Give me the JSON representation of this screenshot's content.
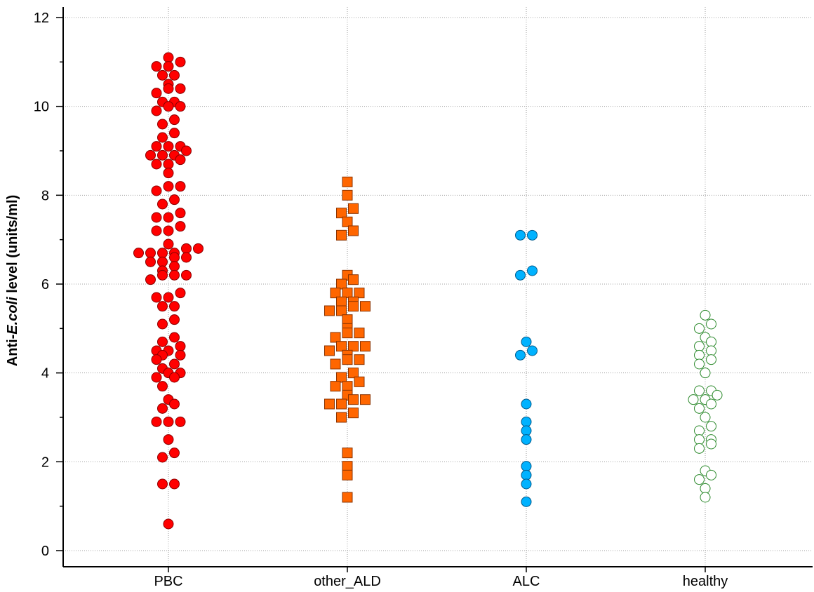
{
  "chart_data": {
    "type": "scatter",
    "title": "",
    "xlabel": "",
    "ylabel": {
      "prefix": "Anti-",
      "italic": "E.coli",
      "suffix": " level (units/ml)"
    },
    "ylim": [
      0,
      12
    ],
    "yticks": [
      0,
      2,
      4,
      6,
      8,
      10,
      12
    ],
    "grid": true,
    "categories": [
      "PBC",
      "other_ALD",
      "ALC",
      "healthy"
    ],
    "series": [
      {
        "name": "PBC",
        "marker": "circle",
        "fill": "#ff0000",
        "stroke": "#8b0000",
        "points": [
          {
            "dx": 0,
            "y": 11.1
          },
          {
            "dx": -2,
            "y": 10.9
          },
          {
            "dx": 0,
            "y": 10.9
          },
          {
            "dx": 2,
            "y": 11.0
          },
          {
            "dx": -1,
            "y": 10.7
          },
          {
            "dx": 1,
            "y": 10.7
          },
          {
            "dx": 0,
            "y": 10.5
          },
          {
            "dx": 0,
            "y": 10.4
          },
          {
            "dx": 2,
            "y": 10.4
          },
          {
            "dx": -2,
            "y": 10.3
          },
          {
            "dx": -1,
            "y": 10.1
          },
          {
            "dx": 1,
            "y": 10.1
          },
          {
            "dx": 0,
            "y": 10.0
          },
          {
            "dx": 2,
            "y": 10.0
          },
          {
            "dx": -2,
            "y": 9.9
          },
          {
            "dx": 1,
            "y": 9.7
          },
          {
            "dx": -1,
            "y": 9.6
          },
          {
            "dx": 1,
            "y": 9.4
          },
          {
            "dx": -1,
            "y": 9.3
          },
          {
            "dx": -2,
            "y": 9.1
          },
          {
            "dx": 0,
            "y": 9.1
          },
          {
            "dx": 2,
            "y": 9.1
          },
          {
            "dx": -3,
            "y": 8.9
          },
          {
            "dx": -1,
            "y": 8.9
          },
          {
            "dx": 1,
            "y": 8.9
          },
          {
            "dx": 3,
            "y": 9.0
          },
          {
            "dx": 2,
            "y": 8.8
          },
          {
            "dx": -2,
            "y": 8.7
          },
          {
            "dx": 0,
            "y": 8.7
          },
          {
            "dx": 0,
            "y": 8.5
          },
          {
            "dx": 0,
            "y": 8.2
          },
          {
            "dx": 2,
            "y": 8.2
          },
          {
            "dx": -2,
            "y": 8.1
          },
          {
            "dx": 1,
            "y": 7.9
          },
          {
            "dx": -1,
            "y": 7.8
          },
          {
            "dx": 2,
            "y": 7.6
          },
          {
            "dx": -2,
            "y": 7.5
          },
          {
            "dx": 0,
            "y": 7.5
          },
          {
            "dx": 2,
            "y": 7.3
          },
          {
            "dx": -2,
            "y": 7.2
          },
          {
            "dx": 0,
            "y": 7.2
          },
          {
            "dx": 0,
            "y": 6.9
          },
          {
            "dx": -5,
            "y": 6.7
          },
          {
            "dx": -3,
            "y": 6.7
          },
          {
            "dx": -1,
            "y": 6.7
          },
          {
            "dx": 1,
            "y": 6.7
          },
          {
            "dx": 3,
            "y": 6.8
          },
          {
            "dx": 5,
            "y": 6.8
          },
          {
            "dx": 1,
            "y": 6.6
          },
          {
            "dx": 3,
            "y": 6.6
          },
          {
            "dx": -3,
            "y": 6.5
          },
          {
            "dx": -1,
            "y": 6.5
          },
          {
            "dx": 1,
            "y": 6.4
          },
          {
            "dx": -1,
            "y": 6.3
          },
          {
            "dx": -1,
            "y": 6.2
          },
          {
            "dx": 1,
            "y": 6.2
          },
          {
            "dx": 3,
            "y": 6.2
          },
          {
            "dx": -3,
            "y": 6.1
          },
          {
            "dx": 2,
            "y": 5.8
          },
          {
            "dx": -2,
            "y": 5.7
          },
          {
            "dx": 0,
            "y": 5.7
          },
          {
            "dx": -1,
            "y": 5.5
          },
          {
            "dx": 1,
            "y": 5.5
          },
          {
            "dx": 1,
            "y": 5.2
          },
          {
            "dx": -1,
            "y": 5.1
          },
          {
            "dx": 1,
            "y": 4.8
          },
          {
            "dx": -1,
            "y": 4.7
          },
          {
            "dx": 2,
            "y": 4.6
          },
          {
            "dx": -2,
            "y": 4.5
          },
          {
            "dx": 0,
            "y": 4.5
          },
          {
            "dx": -1,
            "y": 4.4
          },
          {
            "dx": 2,
            "y": 4.4
          },
          {
            "dx": -2,
            "y": 4.3
          },
          {
            "dx": 1,
            "y": 4.2
          },
          {
            "dx": -1,
            "y": 4.1
          },
          {
            "dx": 0,
            "y": 4.0
          },
          {
            "dx": 2,
            "y": 4.0
          },
          {
            "dx": -2,
            "y": 3.9
          },
          {
            "dx": 1,
            "y": 3.9
          },
          {
            "dx": -1,
            "y": 3.7
          },
          {
            "dx": 0,
            "y": 3.4
          },
          {
            "dx": 1,
            "y": 3.3
          },
          {
            "dx": -1,
            "y": 3.2
          },
          {
            "dx": -2,
            "y": 2.9
          },
          {
            "dx": 0,
            "y": 2.9
          },
          {
            "dx": 2,
            "y": 2.9
          },
          {
            "dx": 0,
            "y": 2.5
          },
          {
            "dx": 1,
            "y": 2.2
          },
          {
            "dx": -1,
            "y": 2.1
          },
          {
            "dx": -1,
            "y": 1.5
          },
          {
            "dx": 1,
            "y": 1.5
          },
          {
            "dx": 0,
            "y": 0.6
          }
        ]
      },
      {
        "name": "other_ALD",
        "marker": "square",
        "fill": "#ff6600",
        "stroke": "#8b3300",
        "points": [
          {
            "dx": 0,
            "y": 8.3
          },
          {
            "dx": 0,
            "y": 8.0
          },
          {
            "dx": 1,
            "y": 7.7
          },
          {
            "dx": -1,
            "y": 7.6
          },
          {
            "dx": 0,
            "y": 7.4
          },
          {
            "dx": 1,
            "y": 7.2
          },
          {
            "dx": -1,
            "y": 7.1
          },
          {
            "dx": 0,
            "y": 6.2
          },
          {
            "dx": 1,
            "y": 6.1
          },
          {
            "dx": -1,
            "y": 6.0
          },
          {
            "dx": -2,
            "y": 5.8
          },
          {
            "dx": 0,
            "y": 5.8
          },
          {
            "dx": 2,
            "y": 5.8
          },
          {
            "dx": -1,
            "y": 5.6
          },
          {
            "dx": 1,
            "y": 5.6
          },
          {
            "dx": -3,
            "y": 5.4
          },
          {
            "dx": -1,
            "y": 5.4
          },
          {
            "dx": 1,
            "y": 5.5
          },
          {
            "dx": 3,
            "y": 5.5
          },
          {
            "dx": 0,
            "y": 5.2
          },
          {
            "dx": 0,
            "y": 5.0
          },
          {
            "dx": 0,
            "y": 4.9
          },
          {
            "dx": 2,
            "y": 4.9
          },
          {
            "dx": -2,
            "y": 4.8
          },
          {
            "dx": -1,
            "y": 4.6
          },
          {
            "dx": 1,
            "y": 4.6
          },
          {
            "dx": 3,
            "y": 4.6
          },
          {
            "dx": -3,
            "y": 4.5
          },
          {
            "dx": 0,
            "y": 4.4
          },
          {
            "dx": 0,
            "y": 4.3
          },
          {
            "dx": 2,
            "y": 4.3
          },
          {
            "dx": -2,
            "y": 4.2
          },
          {
            "dx": 1,
            "y": 4.0
          },
          {
            "dx": -1,
            "y": 3.9
          },
          {
            "dx": 2,
            "y": 3.8
          },
          {
            "dx": -2,
            "y": 3.7
          },
          {
            "dx": 0,
            "y": 3.7
          },
          {
            "dx": 0,
            "y": 3.5
          },
          {
            "dx": 1,
            "y": 3.4
          },
          {
            "dx": 3,
            "y": 3.4
          },
          {
            "dx": -3,
            "y": 3.3
          },
          {
            "dx": -1,
            "y": 3.3
          },
          {
            "dx": 1,
            "y": 3.1
          },
          {
            "dx": -1,
            "y": 3.0
          },
          {
            "dx": 0,
            "y": 2.2
          },
          {
            "dx": 0,
            "y": 1.9
          },
          {
            "dx": 0,
            "y": 1.7
          },
          {
            "dx": 0,
            "y": 1.2
          }
        ]
      },
      {
        "name": "ALC",
        "marker": "circle",
        "fill": "#00b2ff",
        "stroke": "#005a8c",
        "points": [
          {
            "dx": -1,
            "y": 7.1
          },
          {
            "dx": 1,
            "y": 7.1
          },
          {
            "dx": 1,
            "y": 6.3
          },
          {
            "dx": -1,
            "y": 6.2
          },
          {
            "dx": 0,
            "y": 4.7
          },
          {
            "dx": 1,
            "y": 4.5
          },
          {
            "dx": -1,
            "y": 4.4
          },
          {
            "dx": 0,
            "y": 3.3
          },
          {
            "dx": 0,
            "y": 2.9
          },
          {
            "dx": 0,
            "y": 2.7
          },
          {
            "dx": 0,
            "y": 2.5
          },
          {
            "dx": 0,
            "y": 1.9
          },
          {
            "dx": 0,
            "y": 1.7
          },
          {
            "dx": 0,
            "y": 1.5
          },
          {
            "dx": 0,
            "y": 1.1
          }
        ]
      },
      {
        "name": "healthy",
        "marker": "circle",
        "fill": "#ffffff",
        "stroke": "#2e8b2e",
        "points": [
          {
            "dx": 0,
            "y": 5.3
          },
          {
            "dx": 1,
            "y": 5.1
          },
          {
            "dx": -1,
            "y": 5.0
          },
          {
            "dx": 0,
            "y": 4.8
          },
          {
            "dx": 1,
            "y": 4.7
          },
          {
            "dx": -1,
            "y": 4.6
          },
          {
            "dx": 1,
            "y": 4.5
          },
          {
            "dx": -1,
            "y": 4.4
          },
          {
            "dx": 1,
            "y": 4.3
          },
          {
            "dx": -1,
            "y": 4.2
          },
          {
            "dx": 0,
            "y": 4.0
          },
          {
            "dx": -1,
            "y": 3.6
          },
          {
            "dx": 1,
            "y": 3.6
          },
          {
            "dx": 2,
            "y": 3.5
          },
          {
            "dx": -2,
            "y": 3.4
          },
          {
            "dx": 0,
            "y": 3.4
          },
          {
            "dx": 1,
            "y": 3.3
          },
          {
            "dx": -1,
            "y": 3.2
          },
          {
            "dx": 0,
            "y": 3.0
          },
          {
            "dx": 1,
            "y": 2.8
          },
          {
            "dx": -1,
            "y": 2.7
          },
          {
            "dx": -1,
            "y": 2.5
          },
          {
            "dx": 1,
            "y": 2.5
          },
          {
            "dx": 1,
            "y": 2.4
          },
          {
            "dx": -1,
            "y": 2.3
          },
          {
            "dx": 0,
            "y": 1.8
          },
          {
            "dx": 1,
            "y": 1.7
          },
          {
            "dx": -1,
            "y": 1.6
          },
          {
            "dx": 0,
            "y": 1.4
          },
          {
            "dx": 0,
            "y": 1.2
          }
        ]
      }
    ]
  }
}
